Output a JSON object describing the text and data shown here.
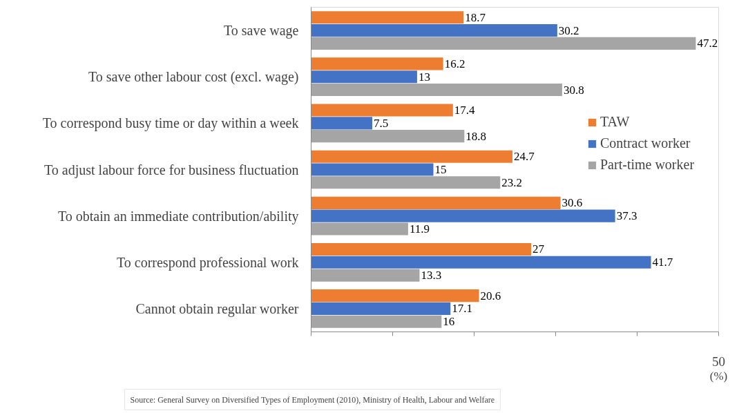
{
  "chart_data": {
    "type": "bar",
    "orientation": "horizontal",
    "xlabel": "(%)",
    "categories": [
      "To save wage",
      "To save other labour cost (excl. wage)",
      "To correspond busy time or day within a week",
      "To adjust labour force for business fluctuation",
      "To obtain an immediate contribution/ability",
      "To correspond professional work",
      "Cannot obtain regular worker"
    ],
    "series": [
      {
        "name": "TAW",
        "color": "#ed7d31",
        "values": [
          18.7,
          16.2,
          17.4,
          24.7,
          30.6,
          27,
          20.6
        ]
      },
      {
        "name": "Contract worker",
        "color": "#4472c4",
        "values": [
          30.2,
          13,
          7.5,
          15,
          37.3,
          41.7,
          17.1
        ]
      },
      {
        "name": "Part-time worker",
        "color": "#a5a5a5",
        "values": [
          47.2,
          30.8,
          18.8,
          23.2,
          11.9,
          13.3,
          16
        ]
      }
    ],
    "xlim": [
      0,
      50
    ],
    "xticks": [
      {
        "value": 0,
        "label": null
      },
      {
        "value": 10,
        "label": null
      },
      {
        "value": 20,
        "label": null
      },
      {
        "value": 30,
        "label": null
      },
      {
        "value": 40,
        "label": null
      },
      50
    ],
    "data_labels": true,
    "grid": false,
    "legend": "right",
    "annotations": [
      "Source: General Survey on Diversified Types of Employment (2010), Ministry of Health, Labour and Welfare"
    ]
  }
}
